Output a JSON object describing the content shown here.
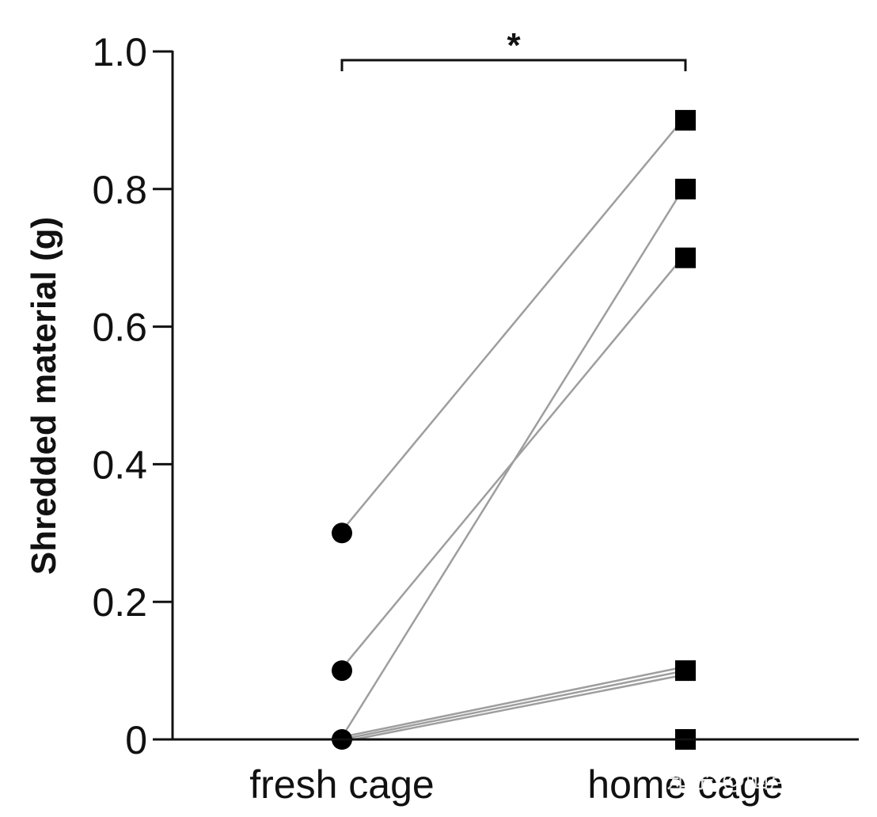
{
  "chart_data": {
    "type": "scatter",
    "title": "",
    "ylabel": "Shredded material (g)",
    "xlabel": "",
    "categories": [
      "fresh cage",
      "home cage"
    ],
    "ylim": [
      0,
      1.0
    ],
    "yticks": [
      {
        "value": 0,
        "label": "0"
      },
      {
        "value": 0.2,
        "label": "0.2"
      },
      {
        "value": 0.4,
        "label": "0.4"
      },
      {
        "value": 0.6,
        "label": "0.6"
      },
      {
        "value": 0.8,
        "label": "0.8"
      },
      {
        "value": 1.0,
        "label": "1.0"
      }
    ],
    "paired_points": [
      {
        "fresh_cage": 0.3,
        "home_cage": 0.9
      },
      {
        "fresh_cage": 0.1,
        "home_cage": 0.7
      },
      {
        "fresh_cage": 0.0,
        "home_cage": 0.8
      },
      {
        "fresh_cage": 0.0,
        "home_cage": 0.1
      },
      {
        "fresh_cage": 0.0,
        "home_cage": 0.1
      },
      {
        "fresh_cage": 0.0,
        "home_cage": 0.1
      },
      {
        "fresh_cage": 0.0,
        "home_cage": 0.0
      }
    ],
    "markers": {
      "fresh_cage": "circle",
      "home_cage": "square"
    },
    "significance": {
      "label": "*",
      "between": [
        "fresh cage",
        "home cage"
      ]
    },
    "grid": false,
    "colors": {
      "axis": "#111111",
      "marker": "#000000",
      "line": "#9e9e9e"
    }
  },
  "watermark": "知乎 @脑声常谈"
}
